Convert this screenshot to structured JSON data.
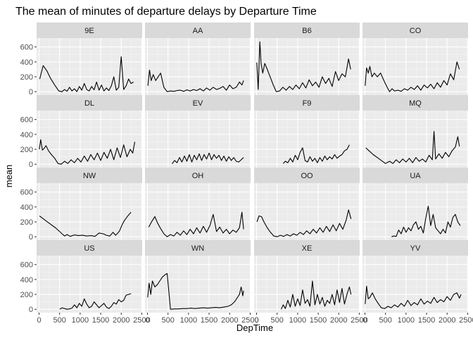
{
  "chart_data": {
    "type": "line",
    "title": "The mean of minutes of departure delays by Departure Time",
    "xlabel": "DepTime",
    "ylabel": "mean",
    "xlim": [
      -60,
      2510
    ],
    "ylim": [
      -45,
      720
    ],
    "x_ticks": [
      0,
      500,
      1000,
      1500,
      2000,
      2500
    ],
    "x_tick_labels": [
      "0",
      "500",
      "1000",
      "1500",
      "2000",
      "2500"
    ],
    "y_ticks": [
      0,
      200,
      400,
      600
    ],
    "y_tick_labels": [
      "0",
      "200",
      "400",
      "600"
    ],
    "facet_layout": {
      "ncol": 4,
      "nrow": 4
    },
    "grid": true,
    "colors": {
      "panel_bg": "#ebebeb",
      "strip_bg": "#d9d9d9",
      "grid_major": "#ffffff",
      "line": "#000000",
      "text": "#4d4d4d"
    },
    "facets": [
      {
        "name": "9E",
        "x": [
          15,
          100,
          190,
          280,
          380,
          480,
          560,
          620,
          680,
          740,
          800,
          860,
          920,
          980,
          1040,
          1100,
          1160,
          1220,
          1280,
          1340,
          1400,
          1460,
          1520,
          1580,
          1640,
          1700,
          1760,
          1820,
          1880,
          1940,
          2000,
          2060,
          2120,
          2180,
          2240,
          2300
        ],
        "y": [
          170,
          350,
          280,
          180,
          90,
          10,
          0,
          30,
          5,
          60,
          10,
          40,
          0,
          70,
          20,
          110,
          30,
          10,
          70,
          25,
          130,
          20,
          90,
          10,
          50,
          15,
          80,
          200,
          20,
          60,
          470,
          30,
          80,
          170,
          110,
          130
        ]
      },
      {
        "name": "AA",
        "x": [
          10,
          50,
          90,
          140,
          200,
          260,
          320,
          400,
          480,
          560,
          640,
          720,
          800,
          880,
          960,
          1040,
          1120,
          1200,
          1280,
          1360,
          1440,
          1520,
          1600,
          1680,
          1760,
          1840,
          1920,
          2000,
          2080,
          2160,
          2240,
          2300,
          2340
        ],
        "y": [
          80,
          290,
          150,
          230,
          150,
          200,
          250,
          60,
          0,
          10,
          5,
          15,
          20,
          5,
          25,
          10,
          30,
          15,
          40,
          10,
          50,
          20,
          60,
          30,
          45,
          70,
          20,
          90,
          40,
          60,
          130,
          90,
          150
        ]
      },
      {
        "name": "B6",
        "x": [
          5,
          40,
          80,
          110,
          150,
          200,
          260,
          330,
          400,
          480,
          560,
          640,
          720,
          800,
          880,
          960,
          1040,
          1120,
          1200,
          1280,
          1360,
          1440,
          1520,
          1600,
          1680,
          1760,
          1840,
          1920,
          2000,
          2080,
          2160,
          2240,
          2290
        ],
        "y": [
          390,
          30,
          670,
          380,
          250,
          380,
          300,
          200,
          100,
          0,
          10,
          60,
          20,
          70,
          30,
          90,
          40,
          120,
          50,
          160,
          80,
          130,
          60,
          200,
          110,
          180,
          70,
          270,
          150,
          240,
          200,
          440,
          300
        ]
      },
      {
        "name": "CO",
        "x": [
          5,
          40,
          80,
          120,
          170,
          230,
          300,
          380,
          460,
          540,
          600,
          660,
          720,
          800,
          880,
          960,
          1040,
          1120,
          1200,
          1280,
          1360,
          1440,
          1520,
          1600,
          1680,
          1760,
          1840,
          1920,
          2000,
          2080,
          2160,
          2240,
          2300
        ],
        "y": [
          80,
          320,
          250,
          340,
          200,
          250,
          200,
          250,
          150,
          60,
          0,
          40,
          10,
          20,
          5,
          40,
          20,
          60,
          30,
          80,
          20,
          90,
          50,
          100,
          40,
          120,
          60,
          150,
          90,
          240,
          160,
          400,
          300
        ]
      },
      {
        "name": "DL",
        "x": [
          5,
          40,
          80,
          120,
          170,
          230,
          300,
          380,
          460,
          540,
          620,
          700,
          780,
          860,
          940,
          1020,
          1100,
          1180,
          1260,
          1340,
          1420,
          1500,
          1580,
          1660,
          1740,
          1820,
          1900,
          1980,
          2060,
          2140,
          2220,
          2280,
          2330
        ],
        "y": [
          200,
          330,
          190,
          210,
          250,
          180,
          130,
          80,
          10,
          0,
          40,
          10,
          60,
          20,
          80,
          30,
          110,
          40,
          130,
          60,
          150,
          50,
          160,
          80,
          200,
          60,
          220,
          90,
          260,
          100,
          200,
          150,
          300
        ]
      },
      {
        "name": "EV",
        "x": [
          600,
          660,
          720,
          780,
          840,
          900,
          960,
          1020,
          1080,
          1140,
          1200,
          1260,
          1320,
          1380,
          1440,
          1500,
          1560,
          1620,
          1680,
          1740,
          1800,
          1860,
          1920,
          1980,
          2040,
          2100,
          2160,
          2220,
          2280,
          2340
        ],
        "y": [
          5,
          50,
          20,
          90,
          30,
          110,
          40,
          130,
          30,
          120,
          60,
          140,
          50,
          130,
          70,
          150,
          60,
          130,
          80,
          120,
          50,
          110,
          40,
          100,
          50,
          90,
          40,
          30,
          60,
          90
        ]
      },
      {
        "name": "F9",
        "x": [
          650,
          700,
          760,
          820,
          880,
          940,
          1000,
          1060,
          1120,
          1180,
          1240,
          1300,
          1360,
          1420,
          1480,
          1540,
          1600,
          1660,
          1720,
          1780,
          1840,
          1900,
          1960,
          2020,
          2080,
          2140,
          2200,
          2260
        ],
        "y": [
          10,
          40,
          20,
          80,
          30,
          120,
          60,
          160,
          220,
          50,
          30,
          100,
          40,
          80,
          20,
          90,
          40,
          110,
          60,
          100,
          70,
          130,
          80,
          110,
          130,
          180,
          200,
          260
        ]
      },
      {
        "name": "MQ",
        "x": [
          20,
          100,
          200,
          300,
          400,
          500,
          600,
          680,
          760,
          840,
          920,
          1000,
          1080,
          1160,
          1240,
          1320,
          1400,
          1480,
          1560,
          1640,
          1680,
          1720,
          1800,
          1880,
          1960,
          2040,
          2120,
          2200,
          2260,
          2300
        ],
        "y": [
          220,
          180,
          130,
          90,
          50,
          10,
          40,
          10,
          60,
          20,
          70,
          30,
          80,
          20,
          90,
          40,
          70,
          30,
          120,
          60,
          440,
          70,
          140,
          80,
          160,
          100,
          180,
          230,
          370,
          240
        ]
      },
      {
        "name": "NW",
        "x": [
          10,
          200,
          400,
          560,
          620,
          680,
          760,
          860,
          960,
          1060,
          1160,
          1260,
          1360,
          1460,
          1560,
          1640,
          1720,
          1800,
          1860,
          1900,
          1960,
          2020,
          2080,
          2160,
          2240
        ],
        "y": [
          280,
          200,
          120,
          40,
          10,
          30,
          5,
          25,
          15,
          20,
          10,
          15,
          5,
          50,
          40,
          20,
          10,
          60,
          20,
          40,
          80,
          160,
          220,
          280,
          330
        ]
      },
      {
        "name": "OH",
        "x": [
          30,
          100,
          180,
          250,
          320,
          400,
          480,
          560,
          640,
          720,
          800,
          880,
          960,
          1040,
          1120,
          1200,
          1280,
          1360,
          1440,
          1520,
          1600,
          1680,
          1760,
          1840,
          1920,
          2000,
          2080,
          2160,
          2240,
          2300,
          2340
        ],
        "y": [
          130,
          200,
          270,
          180,
          110,
          40,
          0,
          30,
          10,
          60,
          20,
          80,
          30,
          100,
          40,
          120,
          50,
          140,
          60,
          150,
          300,
          70,
          130,
          50,
          100,
          40,
          90,
          60,
          120,
          330,
          100
        ]
      },
      {
        "name": "OO",
        "x": [
          10,
          60,
          120,
          180,
          260,
          340,
          420,
          500,
          580,
          660,
          740,
          820,
          900,
          980,
          1060,
          1140,
          1220,
          1300,
          1380,
          1460,
          1540,
          1620,
          1700,
          1780,
          1860,
          1940,
          2020,
          2100,
          2180,
          2240,
          2300
        ],
        "y": [
          200,
          280,
          270,
          200,
          120,
          60,
          10,
          0,
          20,
          5,
          30,
          10,
          40,
          20,
          60,
          30,
          80,
          40,
          100,
          50,
          120,
          60,
          140,
          70,
          160,
          80,
          180,
          100,
          220,
          360,
          240
        ]
      },
      {
        "name": "UA",
        "x": [
          650,
          700,
          760,
          820,
          880,
          940,
          1000,
          1060,
          1120,
          1180,
          1240,
          1300,
          1360,
          1420,
          1480,
          1540,
          1600,
          1660,
          1720,
          1780,
          1840,
          1900,
          1960,
          2020,
          2080,
          2140,
          2200,
          2260,
          2320
        ],
        "y": [
          0,
          10,
          5,
          90,
          40,
          130,
          60,
          120,
          80,
          160,
          200,
          100,
          140,
          50,
          250,
          410,
          150,
          300,
          120,
          80,
          40,
          100,
          50,
          200,
          130,
          260,
          300,
          200,
          150
        ]
      },
      {
        "name": "US",
        "x": [
          500,
          560,
          620,
          680,
          740,
          800,
          860,
          920,
          980,
          1040,
          1100,
          1160,
          1220,
          1280,
          1340,
          1400,
          1460,
          1520,
          1580,
          1640,
          1700,
          1760,
          1820,
          1880,
          1940,
          2000,
          2060,
          2120,
          2180,
          2240
        ],
        "y": [
          0,
          20,
          10,
          0,
          5,
          15,
          60,
          20,
          80,
          40,
          140,
          70,
          20,
          40,
          100,
          60,
          20,
          50,
          80,
          30,
          10,
          40,
          90,
          70,
          130,
          100,
          120,
          190,
          200,
          210
        ]
      },
      {
        "name": "WN",
        "x": [
          5,
          40,
          80,
          120,
          180,
          240,
          300,
          360,
          420,
          480,
          560,
          660,
          760,
          860,
          960,
          1060,
          1160,
          1260,
          1360,
          1460,
          1560,
          1660,
          1760,
          1860,
          1960,
          2040,
          2120,
          2180,
          2240,
          2280,
          2320,
          2340
        ],
        "y": [
          160,
          350,
          200,
          380,
          300,
          330,
          380,
          430,
          460,
          480,
          0,
          5,
          5,
          10,
          10,
          15,
          10,
          15,
          20,
          15,
          20,
          25,
          20,
          30,
          40,
          60,
          100,
          150,
          200,
          300,
          180,
          250
        ]
      },
      {
        "name": "XE",
        "x": [
          600,
          650,
          700,
          760,
          820,
          880,
          940,
          1000,
          1060,
          1120,
          1180,
          1240,
          1300,
          1360,
          1420,
          1480,
          1540,
          1600,
          1660,
          1720,
          1780,
          1840,
          1900,
          1960,
          2020,
          2080,
          2140,
          2200,
          2260,
          2300
        ],
        "y": [
          0,
          60,
          10,
          120,
          30,
          200,
          40,
          140,
          50,
          260,
          80,
          130,
          40,
          380,
          60,
          200,
          70,
          160,
          40,
          120,
          80,
          200,
          60,
          260,
          90,
          280,
          70,
          200,
          300,
          200
        ]
      },
      {
        "name": "YV",
        "x": [
          5,
          40,
          80,
          120,
          180,
          250,
          320,
          400,
          480,
          560,
          640,
          720,
          800,
          880,
          960,
          1040,
          1120,
          1200,
          1280,
          1360,
          1440,
          1520,
          1600,
          1680,
          1760,
          1840,
          1920,
          2000,
          2080,
          2160,
          2240,
          2300,
          2340
        ],
        "y": [
          70,
          310,
          140,
          160,
          220,
          140,
          80,
          20,
          10,
          40,
          20,
          60,
          30,
          80,
          40,
          120,
          50,
          90,
          60,
          140,
          70,
          110,
          80,
          160,
          90,
          130,
          100,
          170,
          120,
          200,
          220,
          150,
          200
        ]
      }
    ]
  }
}
